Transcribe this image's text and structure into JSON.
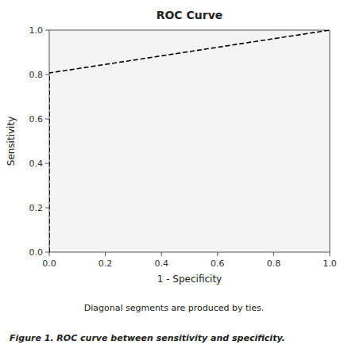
{
  "chart_data": {
    "type": "line",
    "title": "ROC Curve",
    "xlabel": "1 -  Specificity",
    "ylabel": "Sensitivity",
    "x": [
      0.0,
      0.0,
      1.0
    ],
    "values": [
      0.0,
      0.807,
      1.0
    ],
    "color": "#000000",
    "line_style": "dashed",
    "xlim": [
      0.0,
      1.0
    ],
    "ylim": [
      0.0,
      1.0
    ],
    "xticks": [
      {
        "value": 0.0,
        "label": "0.0"
      },
      0.2,
      0.4,
      0.6,
      0.8,
      {
        "value": 1.0,
        "label": "1.0"
      }
    ],
    "yticks": [
      {
        "value": 0.0,
        "label": "0.0"
      },
      0.2,
      0.4,
      0.6,
      0.8,
      {
        "value": 1.0,
        "label": "1.0"
      }
    ],
    "grid": false,
    "annotations": [
      "Diagonal segments are produced by ties.",
      "Figure 1. ROC curve between sensitivity and specificity."
    ]
  }
}
